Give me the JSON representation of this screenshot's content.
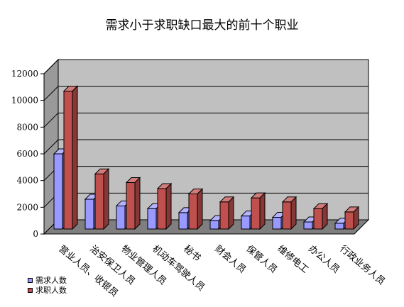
{
  "chart_data": {
    "type": "bar",
    "title": "需求小于求职缺口最大的前十个职业",
    "xlabel": "",
    "ylabel": "",
    "ylim": [
      0,
      12000
    ],
    "y_ticks": [
      "0",
      "2000",
      "4000",
      "6000",
      "8000",
      "10000",
      "12000"
    ],
    "grid": true,
    "legend_position": "bottom-left",
    "categories": [
      "营业人员、收银员",
      "治安保卫人员",
      "物业管理人员",
      "机动车驾驶人员",
      "秘书",
      "财会人员",
      "保管人员",
      "维修电工",
      "办公人员",
      "行政业务人员"
    ],
    "series": [
      {
        "name": "需求人数",
        "color": "#9999ff",
        "values": [
          6000,
          2600,
          2100,
          1900,
          1600,
          1000,
          1350,
          1250,
          900,
          800
        ]
      },
      {
        "name": "求职人数",
        "color": "#c0504d",
        "values": [
          10700,
          4500,
          3850,
          3400,
          3000,
          2400,
          2700,
          2400,
          1900,
          1650
        ]
      }
    ]
  }
}
